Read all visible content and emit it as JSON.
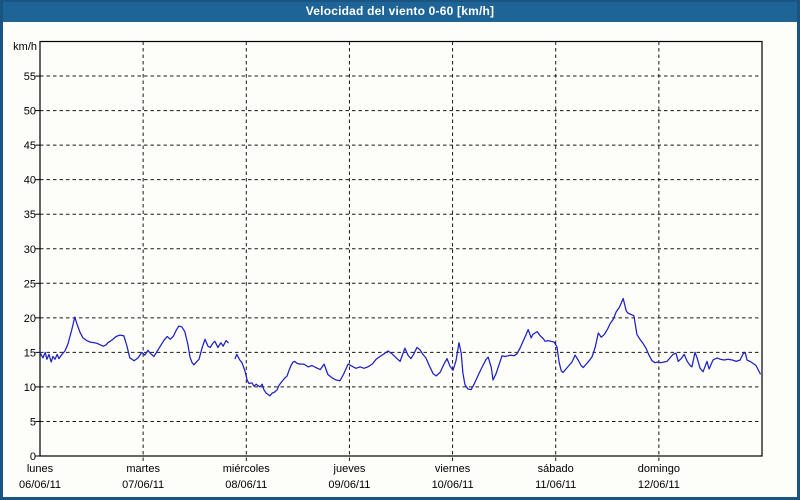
{
  "window": {
    "title": "Velocidad del viento 0-60 [km/h]"
  },
  "colors": {
    "frame_border": "#1a5480",
    "titlebar_bg": "#1e6497",
    "titlebar_text": "#ffffff",
    "page_bg": "#fdfefa",
    "plot_border": "#000000",
    "grid": "#1a1a1a",
    "line": "#1f1fc4"
  },
  "chart_data": {
    "type": "line",
    "title": "Velocidad del viento 0-60 [km/h]",
    "unit_label": "km/h",
    "ylim": [
      0,
      60
    ],
    "ytick_step": 5,
    "ytick_labels": [
      "0",
      "5",
      "10",
      "15",
      "20",
      "25",
      "30",
      "35",
      "40",
      "45",
      "50",
      "55"
    ],
    "grid": "dashed",
    "legend": "none",
    "x_axis": {
      "hours_total": 168,
      "days": [
        {
          "name": "lunes",
          "date": "06/06/11"
        },
        {
          "name": "martes",
          "date": "07/06/11"
        },
        {
          "name": "miércoles",
          "date": "08/06/11"
        },
        {
          "name": "jueves",
          "date": "09/06/11"
        },
        {
          "name": "viernes",
          "date": "10/06/11"
        },
        {
          "name": "sábado",
          "date": "11/06/11"
        },
        {
          "name": "domingo",
          "date": "12/06/11"
        }
      ]
    },
    "series": [
      {
        "name": "velocidad_viento",
        "color": "#1f1fc4",
        "x_unit": "hours",
        "y_unit": "km/h",
        "segments": [
          [
            [
              0.0,
              15.0
            ],
            [
              0.7,
              14.2
            ],
            [
              1.2,
              15.0
            ],
            [
              1.6,
              14.0
            ],
            [
              2.1,
              14.7
            ],
            [
              2.6,
              13.6
            ],
            [
              3.0,
              14.4
            ],
            [
              3.5,
              14.0
            ],
            [
              4.0,
              14.7
            ],
            [
              4.4,
              14.1
            ],
            [
              5.1,
              14.7
            ],
            [
              5.8,
              15.2
            ],
            [
              6.5,
              16.2
            ],
            [
              7.4,
              18.3
            ],
            [
              8.1,
              20.1
            ],
            [
              8.6,
              19.1
            ],
            [
              9.3,
              17.9
            ],
            [
              10.0,
              17.1
            ],
            [
              10.9,
              16.7
            ],
            [
              11.6,
              16.5
            ],
            [
              12.6,
              16.4
            ],
            [
              13.3,
              16.3
            ],
            [
              14.0,
              16.1
            ],
            [
              14.7,
              15.9
            ],
            [
              15.4,
              16.1
            ],
            [
              15.8,
              16.4
            ],
            [
              16.8,
              16.8
            ],
            [
              17.7,
              17.3
            ],
            [
              18.6,
              17.5
            ],
            [
              19.5,
              17.4
            ],
            [
              20.2,
              16.0
            ],
            [
              20.9,
              14.2
            ],
            [
              21.9,
              13.8
            ],
            [
              22.8,
              14.2
            ],
            [
              23.7,
              15.0
            ],
            [
              24.4,
              14.6
            ],
            [
              25.1,
              15.3
            ],
            [
              25.8,
              14.8
            ],
            [
              26.5,
              14.4
            ],
            [
              27.2,
              15.1
            ],
            [
              27.9,
              15.8
            ],
            [
              28.9,
              16.8
            ],
            [
              29.6,
              17.3
            ],
            [
              30.3,
              16.9
            ],
            [
              31.0,
              17.3
            ],
            [
              31.7,
              18.2
            ],
            [
              32.3,
              18.8
            ],
            [
              33.0,
              18.7
            ],
            [
              33.7,
              18.0
            ],
            [
              34.4,
              16.2
            ],
            [
              34.9,
              14.3
            ],
            [
              35.4,
              13.5
            ],
            [
              35.8,
              13.2
            ],
            [
              36.5,
              13.7
            ],
            [
              37.0,
              14.0
            ],
            [
              37.7,
              15.6
            ],
            [
              38.4,
              16.9
            ],
            [
              39.1,
              15.9
            ],
            [
              39.6,
              15.7
            ],
            [
              40.3,
              16.4
            ],
            [
              40.7,
              16.6
            ],
            [
              41.4,
              15.7
            ],
            [
              42.1,
              16.4
            ],
            [
              42.6,
              15.9
            ],
            [
              43.3,
              16.7
            ],
            [
              43.8,
              16.4
            ]
          ],
          [
            [
              45.4,
              14.1
            ],
            [
              45.8,
              14.7
            ],
            [
              46.5,
              13.9
            ],
            [
              47.0,
              13.5
            ],
            [
              47.7,
              12.3
            ],
            [
              48.2,
              11.0
            ],
            [
              48.6,
              10.5
            ],
            [
              49.3,
              10.6
            ],
            [
              49.8,
              10.1
            ],
            [
              50.3,
              10.4
            ],
            [
              50.7,
              10.2
            ],
            [
              51.2,
              10.0
            ],
            [
              51.7,
              10.4
            ],
            [
              52.1,
              9.6
            ],
            [
              52.6,
              9.1
            ],
            [
              53.1,
              8.9
            ],
            [
              53.5,
              8.7
            ],
            [
              54.0,
              9.1
            ],
            [
              54.5,
              9.2
            ],
            [
              55.2,
              9.6
            ],
            [
              55.6,
              10.2
            ],
            [
              56.3,
              10.8
            ],
            [
              57.0,
              11.3
            ],
            [
              57.5,
              11.6
            ],
            [
              58.0,
              12.5
            ],
            [
              58.4,
              13.1
            ],
            [
              58.9,
              13.6
            ],
            [
              59.3,
              13.7
            ],
            [
              59.8,
              13.4
            ],
            [
              60.5,
              13.3
            ],
            [
              61.4,
              13.3
            ],
            [
              62.4,
              12.9
            ],
            [
              63.3,
              13.1
            ],
            [
              64.2,
              12.8
            ],
            [
              65.2,
              12.5
            ],
            [
              66.1,
              13.3
            ],
            [
              67.0,
              11.8
            ],
            [
              68.0,
              11.3
            ],
            [
              68.9,
              11.0
            ],
            [
              69.8,
              10.9
            ],
            [
              70.7,
              11.9
            ],
            [
              71.7,
              13.3
            ],
            [
              72.6,
              13.0
            ],
            [
              73.5,
              12.7
            ],
            [
              74.5,
              12.9
            ],
            [
              75.4,
              12.7
            ],
            [
              76.3,
              12.9
            ],
            [
              77.3,
              13.3
            ],
            [
              78.2,
              14.0
            ],
            [
              79.1,
              14.4
            ],
            [
              80.1,
              14.8
            ],
            [
              81.0,
              15.2
            ],
            [
              81.9,
              14.8
            ],
            [
              82.9,
              14.2
            ],
            [
              83.8,
              13.7
            ],
            [
              84.9,
              15.6
            ],
            [
              85.6,
              14.6
            ],
            [
              86.3,
              14.1
            ],
            [
              87.0,
              14.8
            ],
            [
              87.7,
              15.7
            ],
            [
              88.4,
              15.4
            ],
            [
              89.1,
              14.7
            ],
            [
              89.8,
              14.2
            ],
            [
              90.5,
              13.2
            ],
            [
              91.5,
              11.9
            ],
            [
              92.2,
              11.6
            ],
            [
              93.1,
              12.1
            ],
            [
              94.0,
              13.3
            ],
            [
              94.7,
              14.1
            ],
            [
              95.4,
              13.0
            ],
            [
              96.1,
              12.4
            ],
            [
              96.8,
              13.8
            ],
            [
              97.5,
              16.4
            ],
            [
              98.0,
              14.9
            ],
            [
              98.4,
              12.0
            ],
            [
              98.9,
              10.3
            ],
            [
              99.6,
              9.7
            ],
            [
              100.3,
              9.6
            ],
            [
              101.0,
              10.4
            ],
            [
              101.9,
              11.6
            ],
            [
              102.9,
              12.9
            ],
            [
              103.8,
              14.0
            ],
            [
              104.3,
              14.3
            ],
            [
              105.0,
              12.8
            ],
            [
              105.4,
              11.0
            ],
            [
              106.1,
              11.9
            ],
            [
              106.8,
              13.2
            ],
            [
              107.5,
              14.5
            ],
            [
              108.2,
              14.4
            ],
            [
              108.9,
              14.5
            ],
            [
              109.6,
              14.6
            ],
            [
              110.3,
              14.5
            ],
            [
              111.0,
              14.8
            ],
            [
              111.7,
              15.6
            ],
            [
              112.7,
              17.0
            ],
            [
              113.6,
              18.3
            ],
            [
              114.3,
              17.1
            ],
            [
              114.7,
              17.6
            ],
            [
              115.7,
              18.0
            ],
            [
              116.4,
              17.4
            ],
            [
              117.1,
              17.0
            ],
            [
              117.5,
              16.6
            ],
            [
              118.2,
              16.7
            ],
            [
              118.9,
              16.6
            ],
            [
              119.6,
              16.5
            ],
            [
              120.3,
              15.8
            ],
            [
              120.8,
              13.5
            ],
            [
              121.3,
              12.3
            ],
            [
              121.7,
              12.1
            ],
            [
              122.4,
              12.6
            ],
            [
              123.1,
              13.1
            ],
            [
              123.8,
              13.6
            ],
            [
              124.5,
              14.6
            ],
            [
              125.2,
              13.9
            ],
            [
              125.9,
              13.1
            ],
            [
              126.4,
              12.8
            ],
            [
              127.1,
              13.3
            ],
            [
              127.8,
              13.8
            ],
            [
              128.5,
              14.4
            ],
            [
              129.2,
              15.8
            ],
            [
              129.9,
              17.8
            ],
            [
              130.6,
              17.2
            ],
            [
              131.3,
              17.6
            ],
            [
              132.0,
              18.3
            ],
            [
              132.7,
              19.2
            ],
            [
              133.4,
              19.8
            ],
            [
              134.1,
              20.9
            ],
            [
              134.8,
              21.5
            ],
            [
              135.7,
              22.8
            ],
            [
              136.4,
              21.0
            ],
            [
              136.8,
              20.7
            ],
            [
              137.5,
              20.5
            ],
            [
              138.2,
              20.3
            ],
            [
              138.9,
              17.6
            ],
            [
              139.6,
              16.9
            ],
            [
              140.3,
              16.3
            ],
            [
              141.0,
              15.6
            ],
            [
              141.7,
              14.6
            ],
            [
              142.4,
              13.8
            ],
            [
              143.1,
              13.5
            ],
            [
              143.8,
              13.6
            ],
            [
              144.5,
              13.5
            ],
            [
              145.2,
              13.6
            ],
            [
              145.9,
              13.7
            ],
            [
              146.6,
              14.2
            ],
            [
              147.3,
              14.7
            ],
            [
              148.0,
              14.9
            ],
            [
              148.5,
              13.7
            ],
            [
              149.2,
              14.1
            ],
            [
              149.9,
              14.7
            ],
            [
              150.6,
              13.7
            ],
            [
              151.3,
              13.1
            ],
            [
              151.7,
              12.9
            ],
            [
              152.4,
              15.0
            ],
            [
              152.9,
              14.2
            ],
            [
              153.6,
              12.7
            ],
            [
              154.3,
              12.2
            ],
            [
              155.2,
              13.7
            ],
            [
              155.7,
              12.6
            ],
            [
              156.6,
              13.9
            ],
            [
              157.6,
              14.2
            ],
            [
              158.3,
              14.0
            ],
            [
              159.2,
              13.9
            ],
            [
              160.1,
              14.0
            ],
            [
              161.1,
              13.9
            ],
            [
              162.0,
              13.7
            ],
            [
              162.9,
              13.9
            ],
            [
              163.6,
              14.8
            ],
            [
              164.1,
              15.0
            ],
            [
              164.5,
              13.9
            ],
            [
              165.2,
              13.7
            ],
            [
              165.9,
              13.4
            ],
            [
              166.6,
              13.1
            ],
            [
              167.1,
              12.5
            ],
            [
              167.6,
              11.9
            ]
          ]
        ]
      }
    ]
  }
}
